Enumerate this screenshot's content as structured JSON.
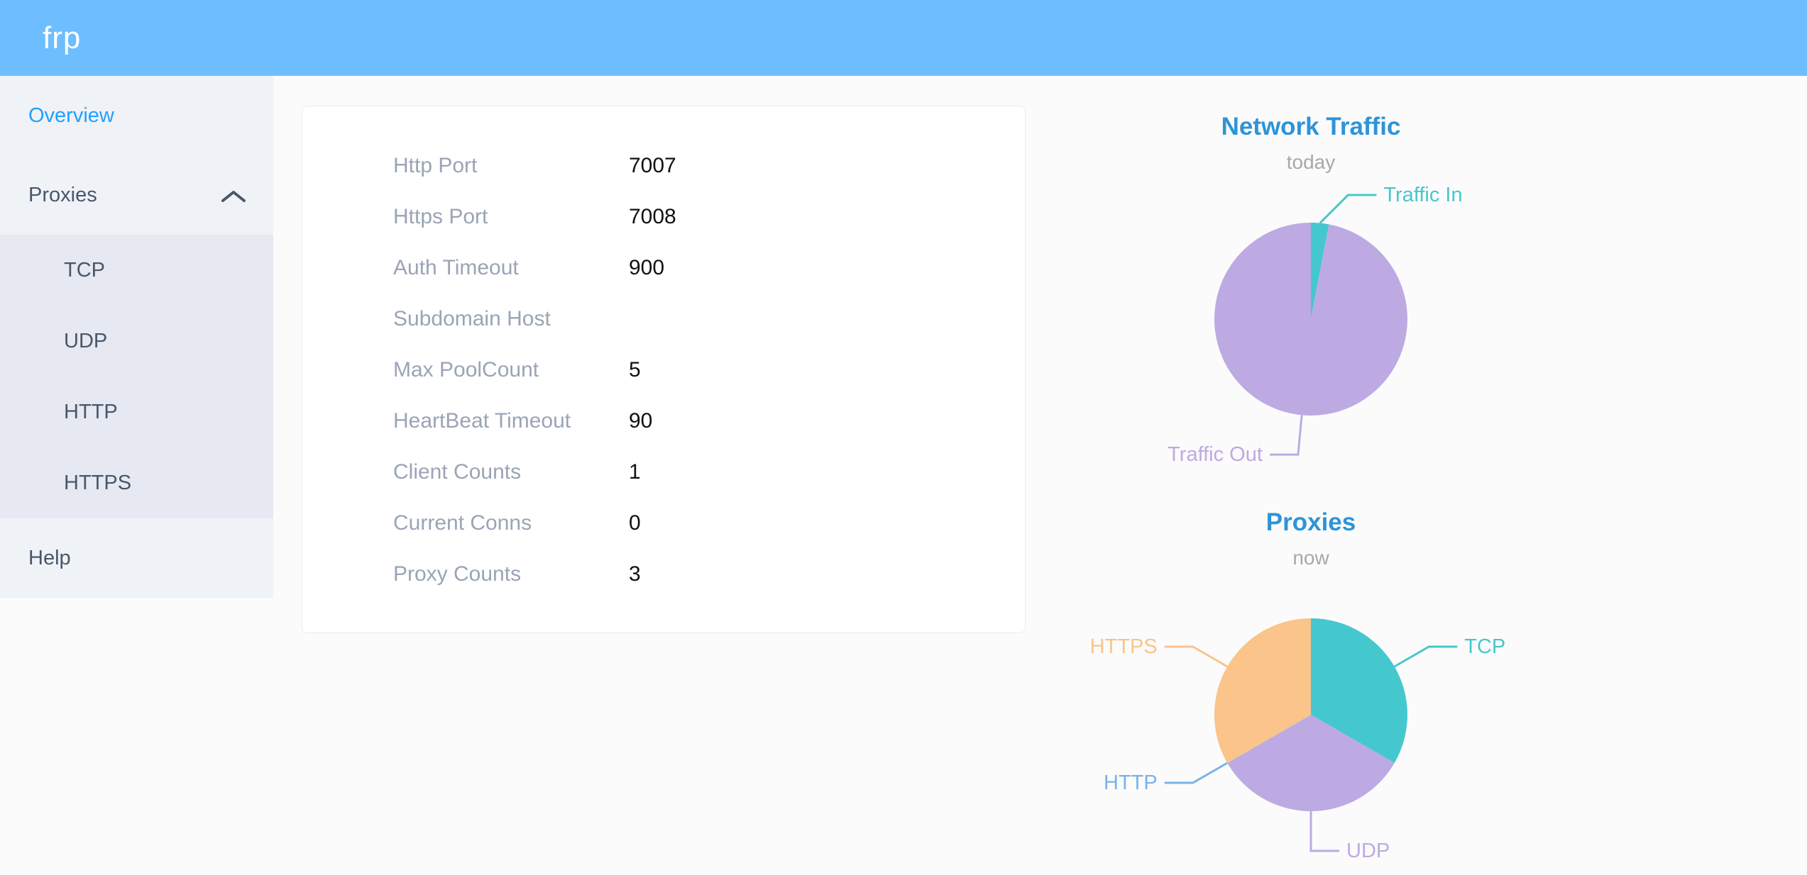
{
  "header": {
    "logo_text": "frp"
  },
  "sidebar": {
    "items": [
      {
        "label": "Overview",
        "active": true
      },
      {
        "label": "Proxies",
        "expanded": true,
        "children": [
          "TCP",
          "UDP",
          "HTTP",
          "HTTPS"
        ]
      },
      {
        "label": "Help"
      }
    ]
  },
  "overview_card": {
    "rows": [
      {
        "label": "Http Port",
        "value": "7007"
      },
      {
        "label": "Https Port",
        "value": "7008"
      },
      {
        "label": "Auth Timeout",
        "value": "900"
      },
      {
        "label": "Subdomain Host",
        "value": ""
      },
      {
        "label": "Max PoolCount",
        "value": "5"
      },
      {
        "label": "HeartBeat Timeout",
        "value": "90"
      },
      {
        "label": "Client Counts",
        "value": "1"
      },
      {
        "label": "Current Conns",
        "value": "0"
      },
      {
        "label": "Proxy Counts",
        "value": "3"
      }
    ]
  },
  "chart_data": [
    {
      "type": "pie",
      "title": "Network Traffic",
      "subtitle": "today",
      "legend_position": "callout-labels",
      "slices": [
        {
          "name": "Traffic In",
          "value": 3,
          "color": "#45c8cd"
        },
        {
          "name": "Traffic Out",
          "value": 97,
          "color": "#bdaae2"
        }
      ]
    },
    {
      "type": "pie",
      "title": "Proxies",
      "subtitle": "now",
      "legend_position": "callout-labels",
      "slices": [
        {
          "name": "TCP",
          "value": 1,
          "color": "#45c8cd"
        },
        {
          "name": "UDP",
          "value": 1,
          "color": "#bdaae2"
        },
        {
          "name": "HTTP",
          "value": 0,
          "color": "#79b2ea"
        },
        {
          "name": "HTTPS",
          "value": 1,
          "color": "#fac48a"
        }
      ]
    }
  ],
  "colors": {
    "header_bg": "#6ebeff",
    "sidebar_bg": "#eff2f7",
    "submenu_bg": "#e6e9f1",
    "menu_text": "#48576a",
    "menu_active": "#20a0ff",
    "chart_title": "#2d94d8",
    "chart_subtitle": "#a8a8a8",
    "card_label": "#9aa4b6",
    "card_value": "#111111"
  }
}
